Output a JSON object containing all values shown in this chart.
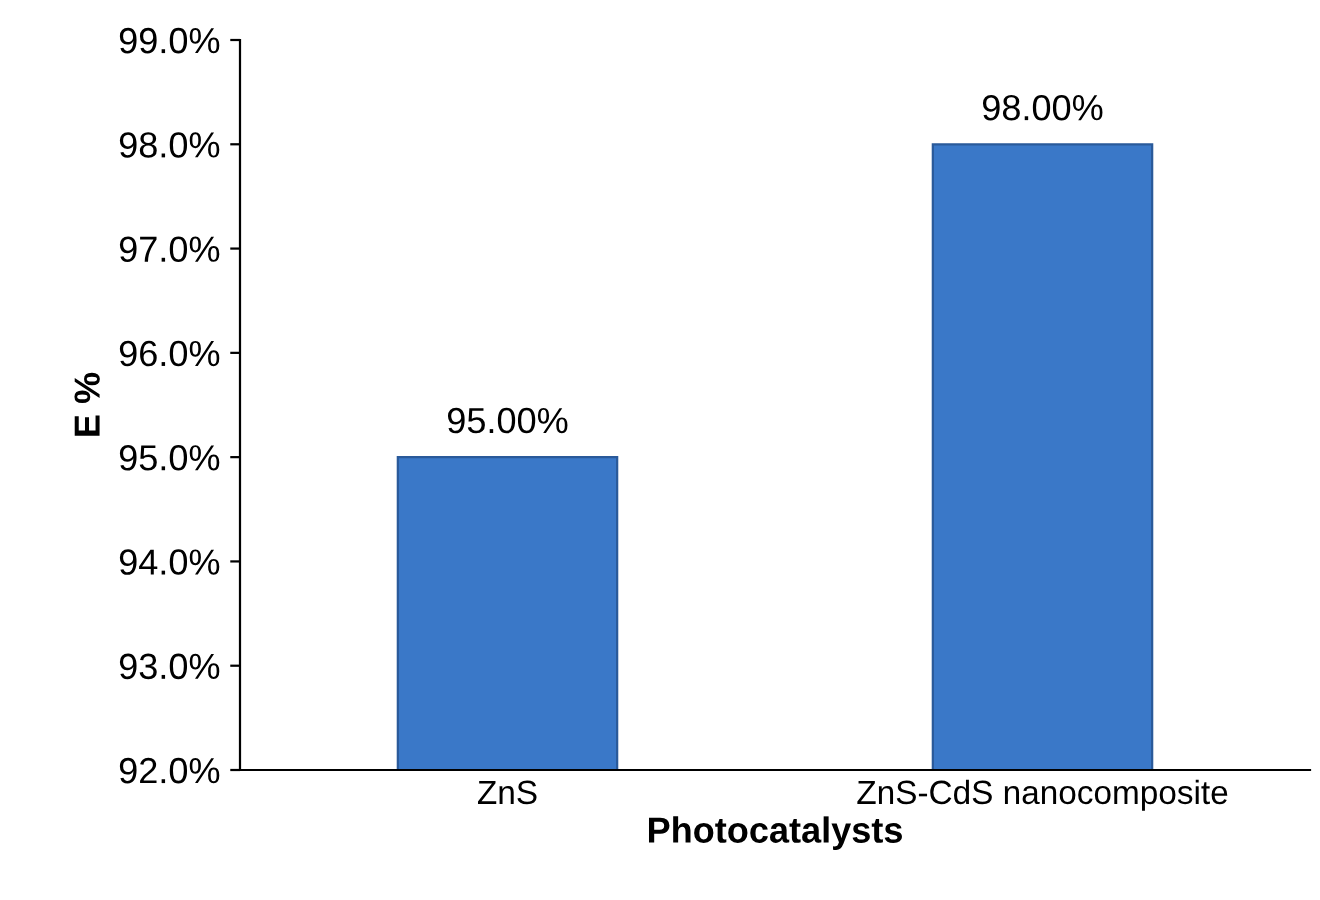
{
  "chart_data": {
    "type": "bar",
    "xlabel": "Photocatalysts",
    "ylabel": "E %",
    "categories": [
      "ZnS",
      "ZnS-CdS nanocomposite"
    ],
    "values": [
      95,
      98
    ],
    "value_labels": [
      "95.00%",
      "98.00%"
    ],
    "color": "#3a78c8",
    "ylim": [
      92,
      99
    ],
    "yticks": [
      {
        "value": 92,
        "label": "92.0%"
      },
      {
        "value": 93,
        "label": "93.0%"
      },
      {
        "value": 94,
        "label": "94.0%"
      },
      {
        "value": 95,
        "label": "95.0%"
      },
      {
        "value": 96,
        "label": "96.0%"
      },
      {
        "value": 97,
        "label": "97.0%"
      },
      {
        "value": 98,
        "label": "98.0%"
      },
      {
        "value": 99,
        "label": "99.0%"
      }
    ],
    "grid": false,
    "legend": false
  }
}
